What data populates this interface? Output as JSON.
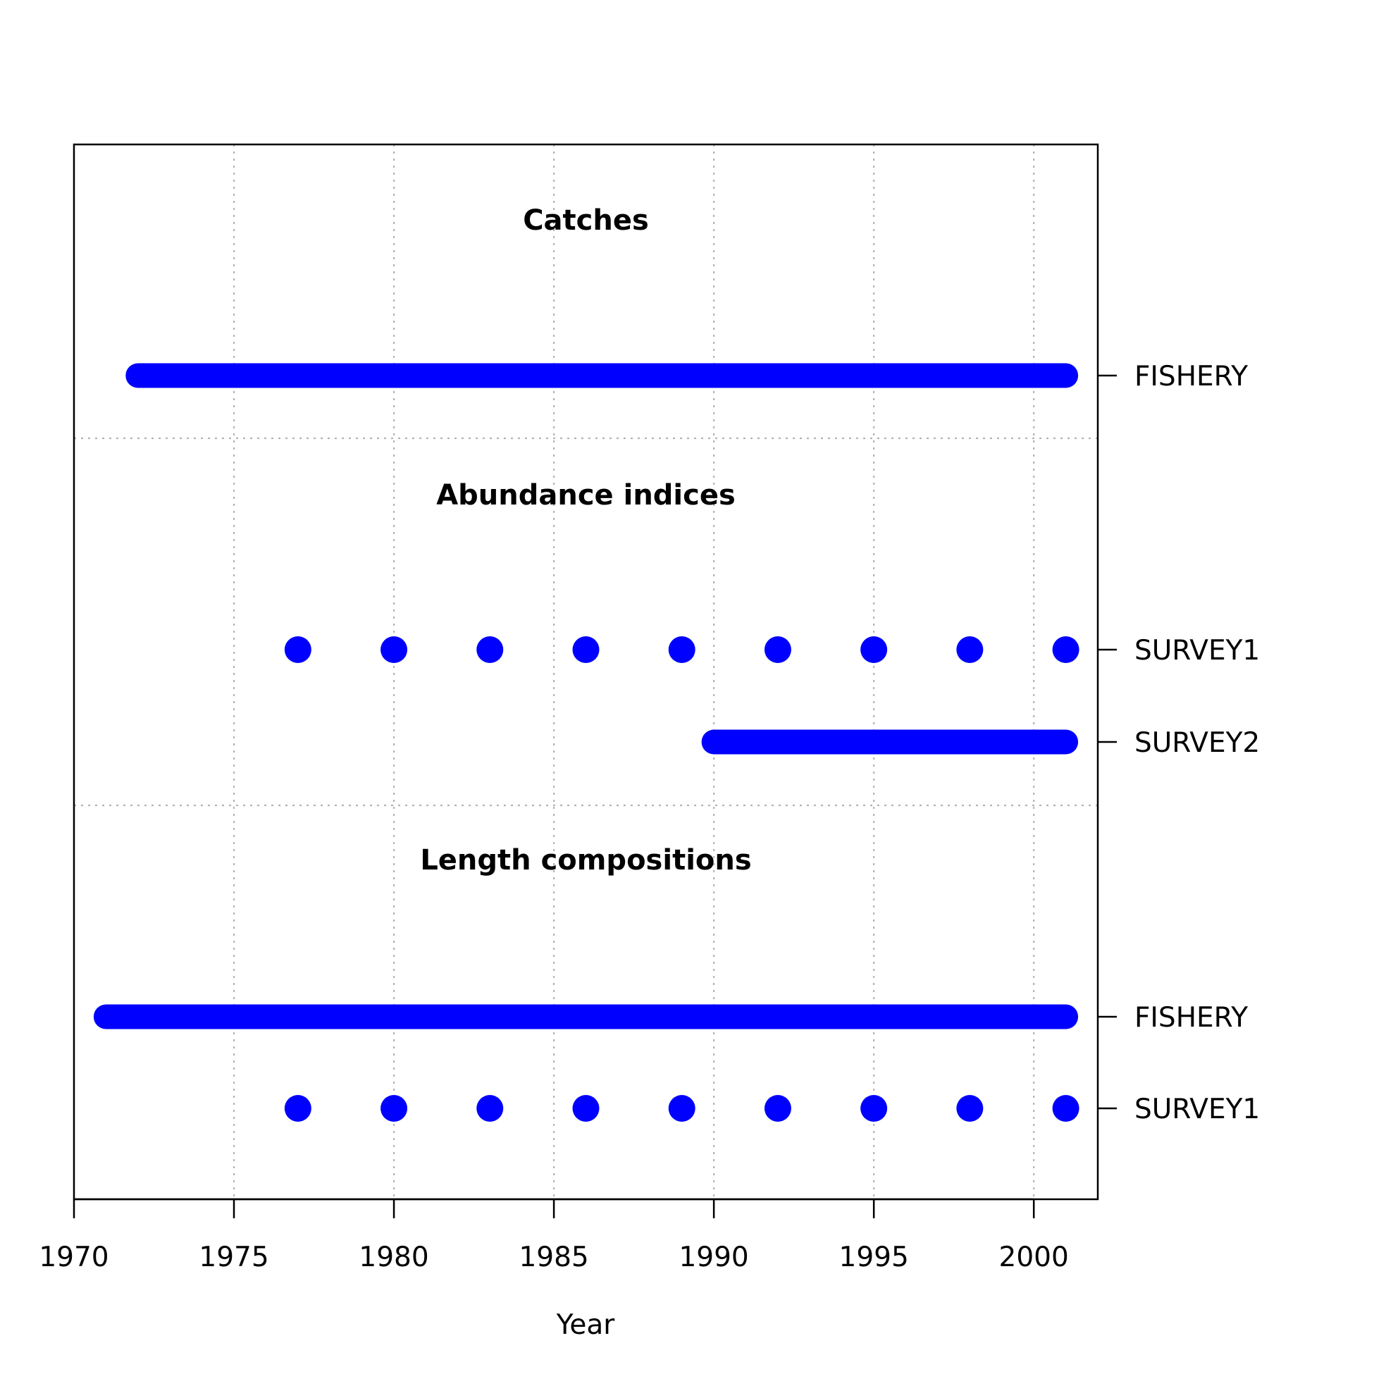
{
  "chart_data": {
    "type": "scatter",
    "xlabel": "Year",
    "xlim": [
      1970,
      2002
    ],
    "x_ticks": [
      1970,
      1975,
      1980,
      1985,
      1990,
      1995,
      2000
    ],
    "grid": true,
    "mark_color": "#0000ff",
    "sections": [
      {
        "title": "Catches",
        "rows": [
          {
            "label": "FISHERY",
            "years": [
              1972,
              1973,
              1974,
              1975,
              1976,
              1977,
              1978,
              1979,
              1980,
              1981,
              1982,
              1983,
              1984,
              1985,
              1986,
              1987,
              1988,
              1989,
              1990,
              1991,
              1992,
              1993,
              1994,
              1995,
              1996,
              1997,
              1998,
              1999,
              2000,
              2001
            ]
          }
        ]
      },
      {
        "title": "Abundance indices",
        "rows": [
          {
            "label": "SURVEY1",
            "years": [
              1977,
              1980,
              1983,
              1986,
              1989,
              1992,
              1995,
              1998,
              2001
            ]
          },
          {
            "label": "SURVEY2",
            "years": [
              1990,
              1991,
              1992,
              1993,
              1994,
              1995,
              1996,
              1997,
              1998,
              1999,
              2000,
              2001
            ]
          }
        ]
      },
      {
        "title": "Length compositions",
        "rows": [
          {
            "label": "FISHERY",
            "years": [
              1971,
              1972,
              1973,
              1974,
              1975,
              1976,
              1977,
              1978,
              1979,
              1980,
              1981,
              1982,
              1983,
              1984,
              1985,
              1986,
              1987,
              1988,
              1989,
              1990,
              1991,
              1992,
              1993,
              1994,
              1995,
              1996,
              1997,
              1998,
              1999,
              2000,
              2001
            ]
          },
          {
            "label": "SURVEY1",
            "years": [
              1977,
              1980,
              1983,
              1986,
              1989,
              1992,
              1995,
              1998,
              2001
            ]
          }
        ]
      }
    ]
  }
}
